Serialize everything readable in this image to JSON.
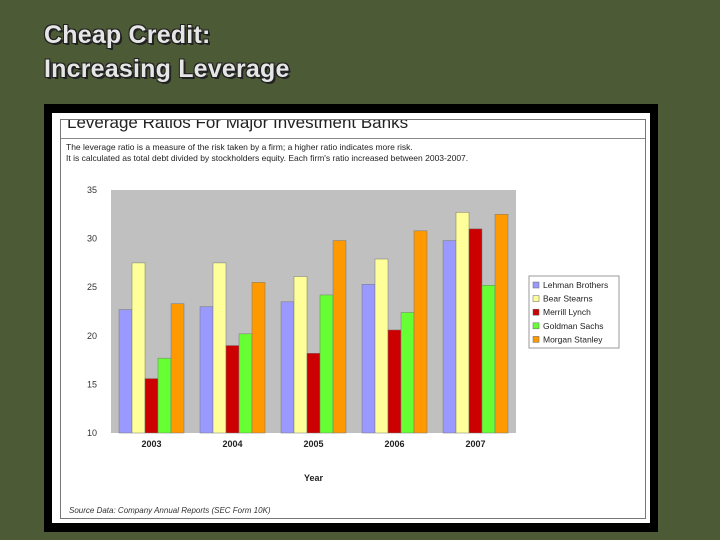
{
  "slide": {
    "title_line1": "Cheap Credit:",
    "title_line2": "Increasing Leverage"
  },
  "chart_data": {
    "type": "bar",
    "title": "Leverage Ratios For Major Investment Banks",
    "description_line1": "The leverage ratio is a measure of the risk taken by a firm; a higher ratio indicates more risk.",
    "description_line2": "It is calculated as total debt divided by stockholders equity. Each firm's ratio increased between 2003-2007.",
    "categories": [
      "2003",
      "2004",
      "2005",
      "2006",
      "2007"
    ],
    "xlabel": "Year",
    "ylabel": "",
    "ylim": [
      10,
      35
    ],
    "yticks": [
      10,
      15,
      20,
      25,
      30,
      35
    ],
    "grid": false,
    "legend_position": "right",
    "series": [
      {
        "name": "Lehman Brothers",
        "color": "#9999ff",
        "values": [
          22.7,
          23.0,
          23.5,
          25.3,
          29.8
        ]
      },
      {
        "name": "Bear Stearns",
        "color": "#ffff99",
        "values": [
          27.5,
          27.5,
          26.1,
          27.9,
          32.7
        ]
      },
      {
        "name": "Merrill Lynch",
        "color": "#cc0000",
        "values": [
          15.6,
          19.0,
          18.2,
          20.6,
          31.0
        ]
      },
      {
        "name": "Goldman Sachs",
        "color": "#66ff33",
        "values": [
          17.7,
          20.2,
          24.2,
          22.4,
          25.2
        ]
      },
      {
        "name": "Morgan Stanley",
        "color": "#ff9900",
        "values": [
          23.3,
          25.5,
          29.8,
          30.8,
          32.5
        ]
      }
    ],
    "source": "Source Data: Company Annual Reports (SEC Form 10K)"
  }
}
